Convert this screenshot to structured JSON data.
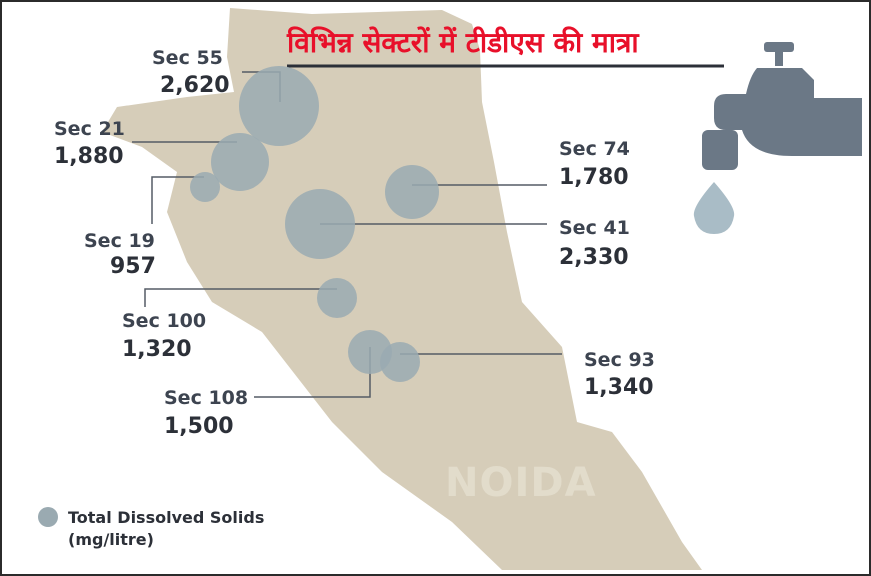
{
  "title": "विभिन्न सेक्टरों में टीडीएस की मात्रा",
  "city_label": "NOIDA",
  "legend": {
    "line1": "Total Dissolved Solids",
    "line2": "(mg/litre)"
  },
  "sectors": [
    {
      "name": "Sec 55",
      "value": "2,620"
    },
    {
      "name": "Sec 21",
      "value": "1,880"
    },
    {
      "name": "Sec 19",
      "value": "957"
    },
    {
      "name": "Sec 74",
      "value": "1,780"
    },
    {
      "name": "Sec 41",
      "value": "2,330"
    },
    {
      "name": "Sec 100",
      "value": "1,320"
    },
    {
      "name": "Sec 93",
      "value": "1,340"
    },
    {
      "name": "Sec 108",
      "value": "1,500"
    }
  ],
  "colors": {
    "land": "#d6cdb9",
    "bubble": "#9aaab1",
    "title": "#e8102a",
    "tap": "#6b7886"
  }
}
